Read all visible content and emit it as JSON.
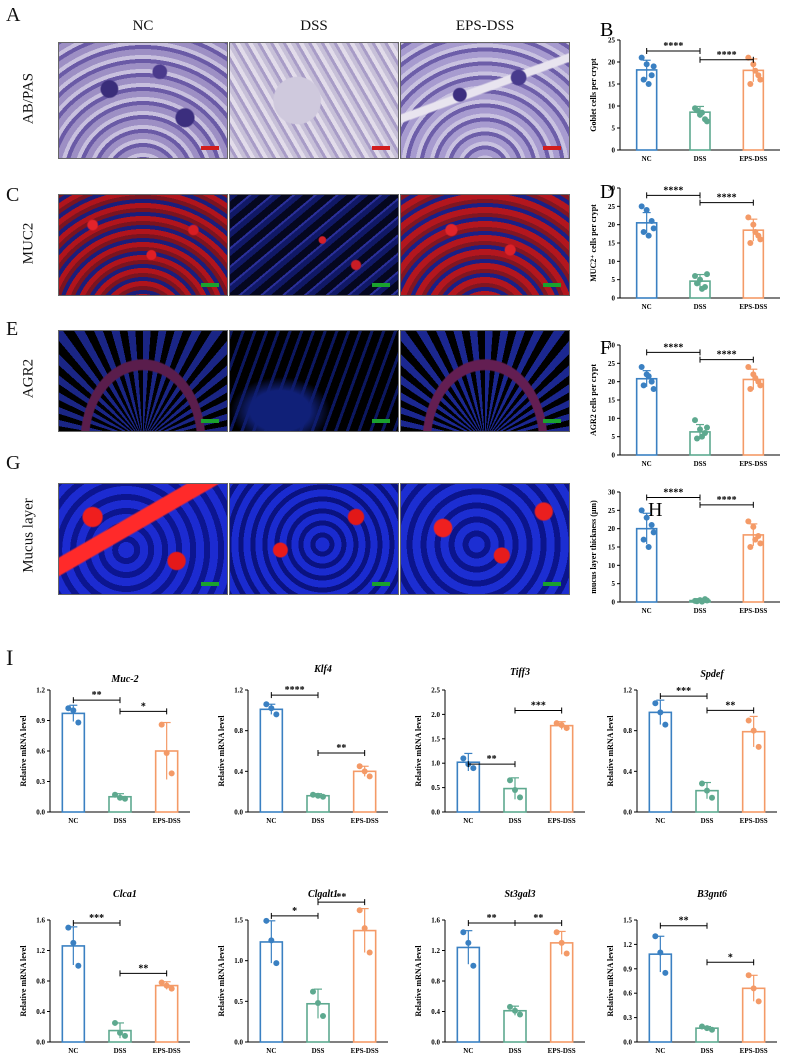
{
  "panels": {
    "A": "A",
    "B": "B",
    "C": "C",
    "D": "D",
    "E": "E",
    "F": "F",
    "G": "G",
    "H": "H",
    "I": "I"
  },
  "columns": [
    "NC",
    "DSS",
    "EPS-DSS"
  ],
  "rows": [
    {
      "label": "AB/PAS",
      "scale_color": "#d21d1d",
      "style": "abpas"
    },
    {
      "label": "MUC2",
      "scale_color": "#1aa12e",
      "style": "muc2"
    },
    {
      "label": "AGR2",
      "scale_color": "#1aa12e",
      "style": "agr2"
    },
    {
      "label": "Mucus layer",
      "scale_color": "#1aa12e",
      "style": "mucus"
    }
  ],
  "colors": {
    "NC": "#3a80c2",
    "DSS": "#5ea98f",
    "EPS-DSS": "#f49a67"
  },
  "chart_data": [
    {
      "id": "B",
      "type": "bar",
      "categories": [
        "NC",
        "DSS",
        "EPS-DSS"
      ],
      "values": [
        18.2,
        8.6,
        18.1
      ],
      "errors": [
        2.2,
        1.3,
        2.6
      ],
      "ylabel": "Goblet cells per crypt",
      "ylim": [
        0,
        25
      ],
      "yticks": [
        "0",
        "5",
        "10",
        "15",
        "20",
        "25"
      ],
      "points": [
        [
          21,
          19.5,
          17,
          16,
          15,
          19
        ],
        [
          9.5,
          8,
          7,
          9,
          8.5,
          6.5
        ],
        [
          21,
          19.5,
          17,
          15,
          18,
          16
        ]
      ],
      "sig": [
        {
          "from": 0,
          "to": 1,
          "label": "****",
          "y": 22.5
        },
        {
          "from": 1,
          "to": 2,
          "label": "****",
          "y": 20.5
        }
      ]
    },
    {
      "id": "D",
      "type": "bar",
      "categories": [
        "NC",
        "DSS",
        "EPS-DSS"
      ],
      "values": [
        20.5,
        4.6,
        18.5
      ],
      "errors": [
        2.8,
        1.8,
        3.0
      ],
      "ylabel": "MUC2⁺ cells per crypt",
      "ylim": [
        0,
        30
      ],
      "yticks": [
        "0",
        "5",
        "10",
        "15",
        "20",
        "25",
        "30"
      ],
      "points": [
        [
          25,
          24,
          21,
          18,
          17,
          19
        ],
        [
          6,
          5,
          3,
          4,
          2.5,
          6.5
        ],
        [
          22,
          20,
          17,
          15,
          18,
          16
        ]
      ],
      "sig": [
        {
          "from": 0,
          "to": 1,
          "label": "****",
          "y": 28
        },
        {
          "from": 1,
          "to": 2,
          "label": "****",
          "y": 26
        }
      ]
    },
    {
      "id": "F",
      "type": "bar",
      "categories": [
        "NC",
        "DSS",
        "EPS-DSS"
      ],
      "values": [
        20.8,
        6.3,
        20.6
      ],
      "errors": [
        2.2,
        2.0,
        2.8
      ],
      "ylabel": "AGR2 cells per crypt",
      "ylim": [
        0,
        30
      ],
      "yticks": [
        "0",
        "5",
        "10",
        "15",
        "20",
        "25",
        "30"
      ],
      "points": [
        [
          24,
          22,
          20,
          19,
          21.5,
          18
        ],
        [
          9.5,
          7,
          6,
          4.5,
          5,
          7.5
        ],
        [
          24,
          22,
          20,
          18,
          21,
          19
        ]
      ],
      "sig": [
        {
          "from": 0,
          "to": 1,
          "label": "****",
          "y": 28
        },
        {
          "from": 1,
          "to": 2,
          "label": "****",
          "y": 26
        }
      ]
    },
    {
      "id": "H",
      "type": "bar",
      "categories": [
        "NC",
        "DSS",
        "EPS-DSS"
      ],
      "values": [
        20.0,
        0.4,
        18.3
      ],
      "errors": [
        4.2,
        0.5,
        3.0
      ],
      "ylabel": "mucus layer thickness (μm)",
      "ylim": [
        0,
        30
      ],
      "yticks": [
        "0",
        "5",
        "10",
        "15",
        "20",
        "25",
        "30"
      ],
      "points": [
        [
          25,
          23,
          21,
          17,
          15,
          19
        ],
        [
          0.3,
          0.5,
          0.8,
          0.2,
          0.1,
          0.4
        ],
        [
          22,
          20.5,
          18,
          15,
          17,
          16
        ]
      ],
      "sig": [
        {
          "from": 0,
          "to": 1,
          "label": "****",
          "y": 28.5
        },
        {
          "from": 1,
          "to": 2,
          "label": "****",
          "y": 26.5
        }
      ]
    },
    {
      "id": "Muc-2",
      "type": "bar",
      "title": "Muc-2",
      "categories": [
        "NC",
        "DSS",
        "EPS-DSS"
      ],
      "values": [
        0.97,
        0.15,
        0.6
      ],
      "errors": [
        0.08,
        0.03,
        0.28
      ],
      "ylabel": "Relative mRNA level",
      "ylim": [
        0,
        1.2
      ],
      "yticks": [
        "0.0",
        "0.3",
        "0.6",
        "0.9",
        "1.2"
      ],
      "points": [
        [
          1.02,
          1.0,
          0.88
        ],
        [
          0.17,
          0.14,
          0.13
        ],
        [
          0.86,
          0.58,
          0.38
        ]
      ],
      "sig": [
        {
          "from": 0,
          "to": 1,
          "label": "**",
          "y": 1.1
        },
        {
          "from": 1,
          "to": 2,
          "label": "*",
          "y": 0.99
        }
      ]
    },
    {
      "id": "Klf4",
      "type": "bar",
      "title": "Klf4",
      "categories": [
        "NC",
        "DSS",
        "EPS-DSS"
      ],
      "values": [
        1.01,
        0.16,
        0.4
      ],
      "errors": [
        0.05,
        0.02,
        0.05
      ],
      "ylabel": "Relative mRNA level",
      "ylim": [
        0,
        1.2
      ],
      "yticks": [
        "0.0",
        "0.4",
        "0.8",
        "1.2"
      ],
      "points": [
        [
          1.06,
          1.02,
          0.96
        ],
        [
          0.17,
          0.16,
          0.15
        ],
        [
          0.45,
          0.4,
          0.35
        ]
      ],
      "sig": [
        {
          "from": 0,
          "to": 1,
          "label": "****",
          "y": 1.15
        },
        {
          "from": 1,
          "to": 2,
          "label": "**",
          "y": 0.58
        }
      ]
    },
    {
      "id": "Tiff3",
      "type": "bar",
      "title": "Tiff3",
      "categories": [
        "NC",
        "DSS",
        "EPS-DSS"
      ],
      "values": [
        1.02,
        0.48,
        1.77
      ],
      "errors": [
        0.18,
        0.22,
        0.08
      ],
      "ylabel": "Relative mRNA level",
      "ylim": [
        0,
        2.5
      ],
      "yticks": [
        "0.0",
        "0.5",
        "1.0",
        "1.5",
        "2.0",
        "2.5"
      ],
      "points": [
        [
          1.1,
          0.98,
          0.9
        ],
        [
          0.65,
          0.45,
          0.3
        ],
        [
          1.82,
          1.78,
          1.72
        ]
      ],
      "sig": [
        {
          "from": 0,
          "to": 1,
          "label": "**",
          "y": 0.98
        },
        {
          "from": 1,
          "to": 2,
          "label": "***",
          "y": 2.08
        }
      ]
    },
    {
      "id": "Spdef",
      "type": "bar",
      "title": "Spdef",
      "categories": [
        "NC",
        "DSS",
        "EPS-DSS"
      ],
      "values": [
        0.98,
        0.21,
        0.79
      ],
      "errors": [
        0.12,
        0.08,
        0.15
      ],
      "ylabel": "Relative mRNA level",
      "ylim": [
        0,
        1.2
      ],
      "yticks": [
        "0.0",
        "0.4",
        "0.8",
        "1.2"
      ],
      "points": [
        [
          1.07,
          0.98,
          0.86
        ],
        [
          0.28,
          0.21,
          0.14
        ],
        [
          0.9,
          0.8,
          0.64
        ]
      ],
      "sig": [
        {
          "from": 0,
          "to": 1,
          "label": "***",
          "y": 1.14
        },
        {
          "from": 1,
          "to": 2,
          "label": "**",
          "y": 1.0
        }
      ]
    },
    {
      "id": "Clca1",
      "type": "bar",
      "title": "Clca1",
      "categories": [
        "NC",
        "DSS",
        "EPS-DSS"
      ],
      "values": [
        1.26,
        0.15,
        0.74
      ],
      "errors": [
        0.25,
        0.1,
        0.05
      ],
      "ylabel": "Relative mRNA level",
      "ylim": [
        0,
        1.6
      ],
      "yticks": [
        "0.0",
        "0.4",
        "0.8",
        "1.2",
        "1.6"
      ],
      "points": [
        [
          1.5,
          1.3,
          1.0
        ],
        [
          0.25,
          0.12,
          0.08
        ],
        [
          0.78,
          0.74,
          0.7
        ]
      ],
      "sig": [
        {
          "from": 0,
          "to": 1,
          "label": "***",
          "y": 1.56
        },
        {
          "from": 1,
          "to": 2,
          "label": "**",
          "y": 0.9
        }
      ]
    },
    {
      "id": "Clgalt1",
      "type": "bar",
      "title": "Clgalt1",
      "categories": [
        "NC",
        "DSS",
        "EPS-DSS"
      ],
      "values": [
        1.23,
        0.47,
        1.37
      ],
      "errors": [
        0.26,
        0.18,
        0.27
      ],
      "ylabel": "Relative mRNA level",
      "ylim": [
        0,
        1.5
      ],
      "yticks": [
        "0.0",
        "0.5",
        "1.0",
        "1.5"
      ],
      "points": [
        [
          1.49,
          1.25,
          0.97
        ],
        [
          0.62,
          0.48,
          0.32
        ],
        [
          1.62,
          1.4,
          1.1
        ]
      ],
      "sig": [
        {
          "from": 0,
          "to": 1,
          "label": "*",
          "y": 1.55
        },
        {
          "from": 1,
          "to": 2,
          "label": "**",
          "y": 1.72
        }
      ]
    },
    {
      "id": "St3gal3",
      "type": "bar",
      "title": "St3gal3",
      "categories": [
        "NC",
        "DSS",
        "EPS-DSS"
      ],
      "values": [
        1.24,
        0.41,
        1.3
      ],
      "errors": [
        0.22,
        0.06,
        0.15
      ],
      "ylabel": "Relative mRNA level",
      "ylim": [
        0,
        1.6
      ],
      "yticks": [
        "0.0",
        "0.4",
        "0.8",
        "1.2",
        "1.6"
      ],
      "points": [
        [
          1.44,
          1.3,
          1.0
        ],
        [
          0.46,
          0.41,
          0.36
        ],
        [
          1.44,
          1.3,
          1.16
        ]
      ],
      "sig": [
        {
          "from": 0,
          "to": 1,
          "label": "**",
          "y": 1.56
        },
        {
          "from": 1,
          "to": 2,
          "label": "**",
          "y": 1.56
        }
      ]
    },
    {
      "id": "B3gnt6",
      "type": "bar",
      "title": "B3gnt6",
      "categories": [
        "NC",
        "DSS",
        "EPS-DSS"
      ],
      "values": [
        1.08,
        0.17,
        0.66
      ],
      "errors": [
        0.22,
        0.02,
        0.16
      ],
      "ylabel": "Relative mRNA level",
      "ylim": [
        0,
        1.5
      ],
      "yticks": [
        "0.0",
        "0.3",
        "0.6",
        "0.9",
        "1.2",
        "1.5"
      ],
      "points": [
        [
          1.3,
          1.1,
          0.85
        ],
        [
          0.19,
          0.17,
          0.15
        ],
        [
          0.82,
          0.66,
          0.5
        ]
      ],
      "sig": [
        {
          "from": 0,
          "to": 1,
          "label": "**",
          "y": 1.43
        },
        {
          "from": 1,
          "to": 2,
          "label": "*",
          "y": 0.98
        }
      ]
    }
  ]
}
